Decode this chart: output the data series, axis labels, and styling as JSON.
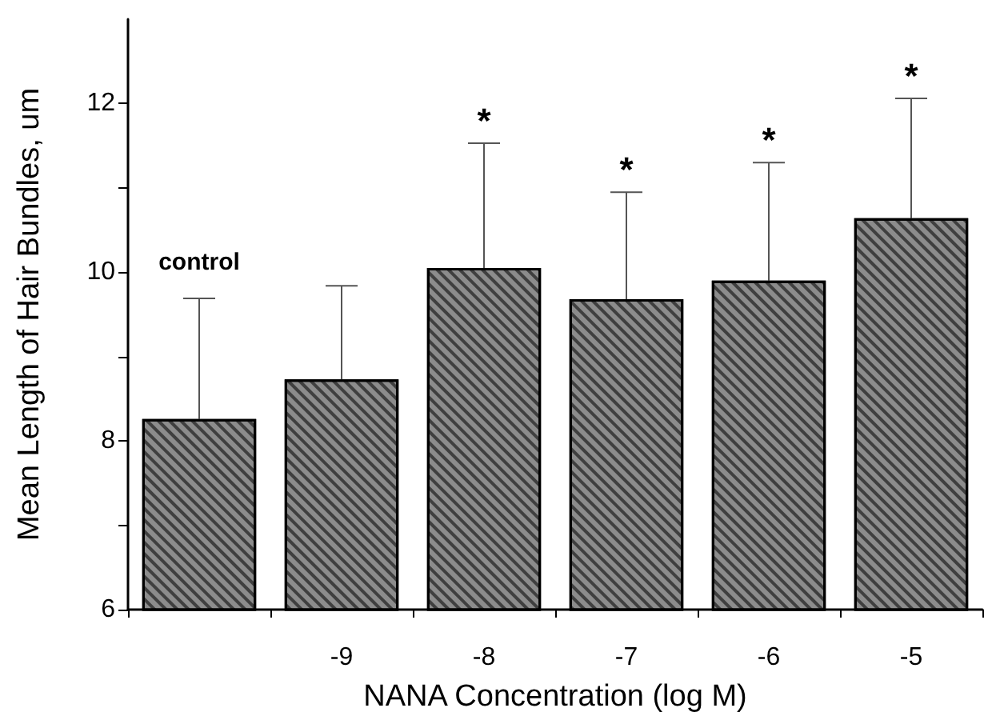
{
  "chart_data": {
    "type": "bar",
    "xlabel": "NANA Concentration (log M)",
    "ylabel": "Mean Length of Hair Bundles, um",
    "categories": [
      null,
      "-9",
      "-8",
      "-7",
      "-6",
      "-5"
    ],
    "values": [
      8.26,
      8.73,
      10.05,
      9.68,
      9.9,
      10.64
    ],
    "errors": [
      [
        8.26,
        9.69
      ],
      [
        8.73,
        9.84
      ],
      [
        10.05,
        11.53
      ],
      [
        9.68,
        10.95
      ],
      [
        9.9,
        11.3
      ],
      [
        10.64,
        12.06
      ]
    ],
    "color": "#8c8c8c",
    "ylim": [
      6,
      13
    ],
    "yticks": [
      6,
      {
        "value": 7,
        "label": null
      },
      8,
      {
        "value": 9,
        "label": null
      },
      10,
      {
        "value": 11,
        "label": null
      },
      12
    ],
    "annotations": [
      "control",
      {
        "text": "*",
        "x": "-8",
        "y": 11.53
      },
      {
        "text": "*",
        "x": "-7",
        "y": 10.95
      },
      {
        "text": "*",
        "x": "-6",
        "y": 11.3
      },
      {
        "text": "*",
        "x": "-5",
        "y": 12.06
      }
    ],
    "grid": false
  }
}
